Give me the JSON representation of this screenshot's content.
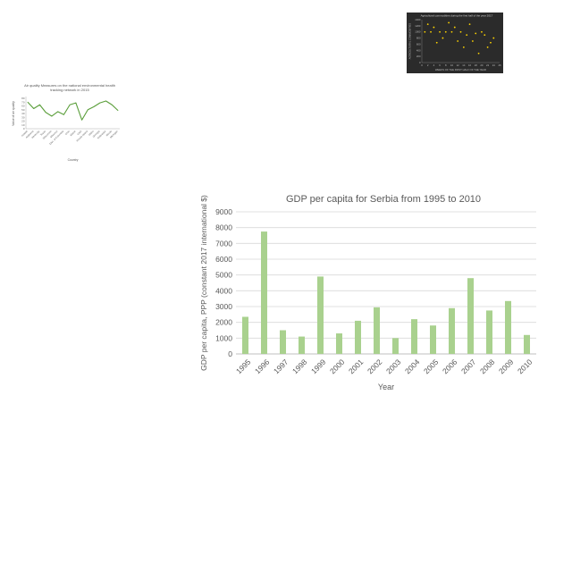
{
  "chart_data": [
    {
      "type": "line",
      "title": "Air quality Measures on the national environmental health tracking network in 2015",
      "title_lines": [
        "Air quality Measures on the national environmental health",
        "tracking network in 2015"
      ],
      "xlabel": "Country",
      "ylabel": "Value of air quality",
      "ylim": [
        0,
        80
      ],
      "yticks": [
        0,
        10,
        20,
        30,
        40,
        50,
        60,
        70,
        80
      ],
      "categories": [
        "Adair",
        "Allen",
        "Anderson",
        "Bath",
        "Bell",
        "Boone",
        "Boyd",
        "Breathitt",
        "Butler",
        "Calloway",
        "Campbell",
        "Carter",
        "Clark",
        "Clay",
        "Estill",
        "Fayette"
      ],
      "category_labels": [
        "Hawaii",
        "Alabama",
        "Kentucky",
        "Texas",
        "Wisconsin",
        "Missouri",
        "Dist. of Columbia",
        "Ohio",
        "Maine",
        "Utah",
        "Rhode Island",
        "Idaho",
        "Georgia",
        "Nebraska",
        "Illinois",
        "Michigan"
      ],
      "values": [
        70,
        53,
        63,
        43,
        33,
        45,
        37,
        63,
        68,
        23,
        50,
        58,
        68,
        73,
        63,
        48
      ],
      "color": "#5a9e3a",
      "grid": false
    },
    {
      "type": "scatter",
      "title": "Agricultural commodities during the first half of the year 2017",
      "xlabel": "WEEKS OF THE FIRST HALF OF THE YEAR",
      "ylabel": "AGRICULTURAL COMMODITIES",
      "xlim": [
        0,
        26
      ],
      "ylim": [
        0,
        1400
      ],
      "xticks": [
        0,
        2,
        4,
        6,
        8,
        10,
        12,
        14,
        16,
        18,
        20,
        22,
        24,
        26
      ],
      "yticks": [
        0,
        200,
        400,
        600,
        800,
        1000,
        1200,
        1400
      ],
      "x": [
        1,
        2,
        3,
        4,
        5,
        6,
        7,
        8,
        9,
        10,
        11,
        12,
        13,
        14,
        15,
        16,
        17,
        18,
        19,
        20,
        21,
        22,
        23,
        24
      ],
      "y": [
        1000,
        1250,
        1000,
        1150,
        650,
        1000,
        800,
        1000,
        1300,
        1000,
        1150,
        700,
        1000,
        500,
        900,
        1250,
        700,
        950,
        300,
        1000,
        900,
        500,
        650,
        800
      ],
      "color": "#ffd400",
      "background": "#2b2b2b",
      "grid": false
    },
    {
      "type": "bar",
      "title": "GDP per capita for Serbia from 1995 to 2010",
      "xlabel": "Year",
      "ylabel": "GDP per capita, PPP (constant 2017 international $)",
      "categories": [
        "1995",
        "1996",
        "1997",
        "1998",
        "1999",
        "2000",
        "2001",
        "2002",
        "2003",
        "2004",
        "2005",
        "2006",
        "2007",
        "2008",
        "2009",
        "2010"
      ],
      "values": [
        2350,
        7750,
        1500,
        1100,
        4900,
        1300,
        2100,
        2950,
        1000,
        2200,
        1800,
        2900,
        4800,
        2750,
        3350,
        1200
      ],
      "ylim": [
        0,
        9000
      ],
      "yticks": [
        0,
        1000,
        2000,
        3000,
        4000,
        5000,
        6000,
        7000,
        8000,
        9000
      ],
      "color": "#a9d18e",
      "grid": true
    }
  ]
}
